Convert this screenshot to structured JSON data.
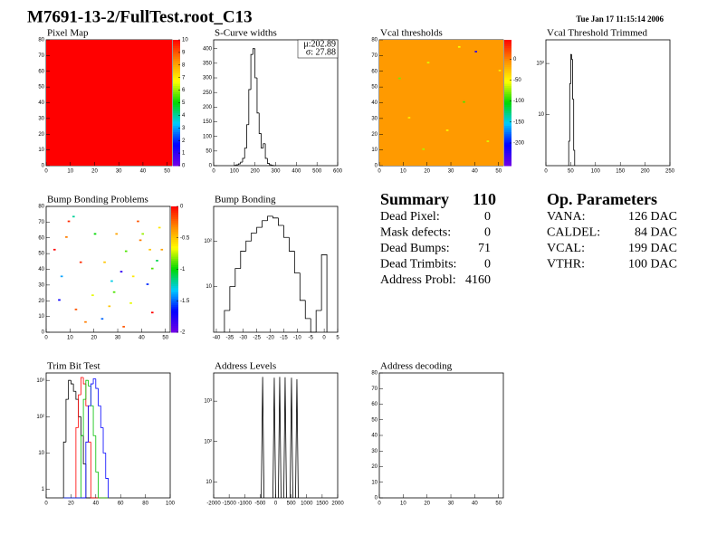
{
  "title": "M7691-13-2/FullTest.root_C13",
  "date": "Tue Jan 17 11:15:14 2006",
  "chart_data": [
    {
      "type": "heatmap",
      "title": "Pixel Map",
      "xlim": [
        0,
        52
      ],
      "ylim": [
        0,
        80
      ],
      "xticks": [
        0,
        10,
        20,
        30,
        40,
        50
      ],
      "yticks": [
        0,
        10,
        20,
        30,
        40,
        50,
        60,
        70,
        80
      ],
      "zlim": [
        0,
        10
      ],
      "zticks": [
        0,
        1,
        2,
        3,
        4,
        5,
        6,
        7,
        8,
        9,
        10
      ],
      "fill": 10,
      "cells": []
    },
    {
      "type": "histogram",
      "title": "S-Curve widths",
      "xlim": [
        0,
        600
      ],
      "ylim": [
        0,
        430
      ],
      "xticks": [
        0,
        100,
        200,
        300,
        400,
        500,
        600
      ],
      "yticks": [
        0,
        50,
        100,
        150,
        200,
        250,
        300,
        350,
        400
      ],
      "bins": [
        100,
        110,
        120,
        130,
        140,
        150,
        160,
        170,
        180,
        190,
        200,
        210,
        220,
        230,
        240,
        250,
        260,
        270,
        280,
        290,
        300
      ],
      "values": [
        1,
        3,
        6,
        12,
        25,
        60,
        140,
        260,
        380,
        400,
        300,
        180,
        110,
        60,
        75,
        25,
        8,
        3,
        1,
        0
      ],
      "annotations": [
        "μ:202.89",
        "σ: 27.88"
      ]
    },
    {
      "type": "heatmap",
      "title": "Vcal thresholds",
      "xlim": [
        0,
        52
      ],
      "ylim": [
        0,
        80
      ],
      "xticks": [
        0,
        10,
        20,
        30,
        40,
        50
      ],
      "yticks": [
        0,
        10,
        20,
        30,
        40,
        50,
        60,
        70,
        80
      ],
      "zlim": [
        -254,
        46
      ],
      "zticks": [
        0,
        -50,
        -100,
        -150,
        -200
      ],
      "fill": -10,
      "cells": [
        [
          20,
          65,
          -60
        ],
        [
          35,
          40,
          -90
        ],
        [
          40,
          72,
          -220
        ],
        [
          12,
          30,
          -45
        ],
        [
          45,
          15,
          -60
        ],
        [
          8,
          55,
          -80
        ],
        [
          28,
          22,
          -50
        ],
        [
          50,
          60,
          -45
        ],
        [
          18,
          10,
          -70
        ],
        [
          33,
          75,
          -55
        ]
      ]
    },
    {
      "type": "histogram",
      "title": "Vcal Threshold Trimmed",
      "xlim": [
        0,
        250
      ],
      "ylim": [
        1,
        290
      ],
      "log_y": true,
      "xticks": [
        0,
        50,
        100,
        150,
        200,
        250
      ],
      "yticks": [
        10,
        {
          "value": 100,
          "label": "10²"
        }
      ],
      "bins": [
        46,
        48,
        50,
        52,
        54,
        56,
        58
      ],
      "values": [
        3,
        40,
        150,
        120,
        20,
        2
      ]
    },
    {
      "type": "heatmap",
      "title": "Bump Bonding Problems",
      "xlim": [
        0,
        52
      ],
      "ylim": [
        0,
        80
      ],
      "xticks": [
        0,
        10,
        20,
        30,
        40,
        50
      ],
      "yticks": [
        0,
        10,
        20,
        30,
        40,
        50,
        60,
        70,
        80
      ],
      "zlim": [
        -2,
        0
      ],
      "zticks": [
        0,
        -0.5,
        -1,
        -1.5,
        -2
      ],
      "cells": [
        [
          3,
          52,
          0
        ],
        [
          8,
          60,
          -0.3
        ],
        [
          11,
          73,
          -1.2
        ],
        [
          14,
          44,
          -0.1
        ],
        [
          19,
          23,
          -0.7
        ],
        [
          20,
          62,
          -1
        ],
        [
          24,
          44,
          -0.5
        ],
        [
          27,
          32,
          -1.3
        ],
        [
          29,
          62,
          -0.4
        ],
        [
          31,
          38,
          -1.8
        ],
        [
          33,
          51,
          -0.9
        ],
        [
          36,
          35,
          -0.6
        ],
        [
          38,
          70,
          -0.2
        ],
        [
          40,
          62,
          -0.8
        ],
        [
          43,
          52,
          -0.5
        ],
        [
          46,
          45,
          -1.1
        ],
        [
          48,
          52,
          -0.4
        ],
        [
          44,
          12,
          0
        ],
        [
          12,
          14,
          -0.2
        ],
        [
          23,
          8,
          -1.5
        ],
        [
          35,
          18,
          -0.7
        ],
        [
          42,
          30,
          -1.6
        ],
        [
          6,
          35,
          -1.4
        ],
        [
          16,
          6,
          -0.3
        ],
        [
          28,
          25,
          -0.9
        ],
        [
          9,
          70,
          -0.1
        ],
        [
          39,
          58,
          -0.3
        ],
        [
          47,
          66,
          -0.6
        ],
        [
          26,
          16,
          -0.5
        ],
        [
          5,
          20,
          -1.7
        ],
        [
          44,
          40,
          -0.9
        ],
        [
          32,
          3,
          -0.2
        ]
      ]
    },
    {
      "type": "histogram",
      "title": "Bump Bonding",
      "xlim": [
        -41,
        5
      ],
      "ylim": [
        1,
        575
      ],
      "log_y": true,
      "xticks": [
        -40,
        -35,
        -30,
        -25,
        -20,
        -15,
        -10,
        -5,
        0,
        5
      ],
      "yticks": [
        10,
        {
          "value": 100,
          "label": "10²"
        }
      ],
      "bins": [
        -37,
        -35,
        -33,
        -31,
        -29,
        -27,
        -25,
        -23,
        -21,
        -19,
        -17,
        -15,
        -13,
        -11,
        -9,
        -7,
        -5,
        -3,
        -1,
        1
      ],
      "values": [
        3,
        10,
        25,
        60,
        100,
        150,
        200,
        280,
        350,
        320,
        220,
        120,
        60,
        20,
        5,
        2,
        0,
        3,
        50
      ]
    },
    {
      "type": "histogram",
      "title": "Trim Bit Test",
      "xlim": [
        0,
        100
      ],
      "ylim": [
        0.58,
        1600
      ],
      "log_y": true,
      "xticks": [
        0,
        20,
        40,
        60,
        80,
        100
      ],
      "yticks": [
        1,
        10,
        {
          "value": 100,
          "label": "10²"
        },
        {
          "value": 1000,
          "label": "10³"
        }
      ],
      "bins": [
        14,
        16,
        18,
        20,
        22,
        24,
        26,
        28,
        30,
        32,
        34,
        36,
        38,
        40,
        42,
        44,
        46,
        48,
        50
      ],
      "series": [
        {
          "color": "#000000",
          "values": [
            20,
            300,
            1000,
            800,
            500,
            300,
            100,
            30,
            5,
            0,
            0,
            0,
            0,
            0,
            0,
            0,
            0,
            0
          ]
        },
        {
          "color": "#ff0000",
          "values": [
            0,
            0,
            0,
            0,
            0,
            50,
            400,
            1200,
            800,
            200,
            20,
            0,
            0,
            0,
            0,
            0,
            0,
            0
          ]
        },
        {
          "color": "#00c000",
          "values": [
            0,
            0,
            0,
            0,
            0,
            0,
            0,
            30,
            300,
            1000,
            700,
            200,
            30,
            3,
            0,
            0,
            0,
            0
          ]
        },
        {
          "color": "#0000ff",
          "values": [
            0,
            0,
            0,
            0,
            0,
            0,
            0,
            0,
            0,
            20,
            200,
            800,
            1100,
            600,
            200,
            50,
            10,
            2
          ]
        }
      ]
    },
    {
      "type": "stem",
      "title": "Address Levels",
      "xlim": [
        -2000,
        2000
      ],
      "ylim": [
        4,
        5000
      ],
      "log_y": true,
      "xticks": [
        -2000,
        -1500,
        -1000,
        -500,
        0,
        500,
        1000,
        1500,
        2000
      ],
      "yticks": [
        10,
        {
          "value": 100,
          "label": "10²"
        },
        {
          "value": 1000,
          "label": "10³"
        }
      ],
      "x": [
        -420,
        -45,
        130,
        305,
        510,
        685
      ],
      "values": [
        4000,
        3800,
        4000,
        3900,
        3800,
        3500
      ]
    },
    {
      "type": "heatmap",
      "title": "Address decoding",
      "xlim": [
        0,
        52
      ],
      "ylim": [
        0,
        80
      ],
      "xticks": [
        0,
        10,
        20,
        30,
        40,
        50
      ],
      "yticks": [
        0,
        10,
        20,
        30,
        40,
        50,
        60,
        70,
        80
      ],
      "cells": []
    }
  ],
  "summary": {
    "title": "Summary",
    "value": 110,
    "rows": [
      {
        "label": "Dead Pixel:",
        "value": 0
      },
      {
        "label": "Mask defects:",
        "value": 0
      },
      {
        "label": "Dead Bumps:",
        "value": 71
      },
      {
        "label": "Dead Trimbits:",
        "value": 0
      },
      {
        "label": "Address Probl:",
        "value": 4160
      }
    ]
  },
  "parameters": {
    "title": "Op. Parameters",
    "rows": [
      {
        "label": "VANA:",
        "value": "126 DAC"
      },
      {
        "label": "CALDEL:",
        "value": "84 DAC"
      },
      {
        "label": "VCAL:",
        "value": "199 DAC"
      },
      {
        "label": "VTHR:",
        "value": "100 DAC"
      }
    ]
  }
}
